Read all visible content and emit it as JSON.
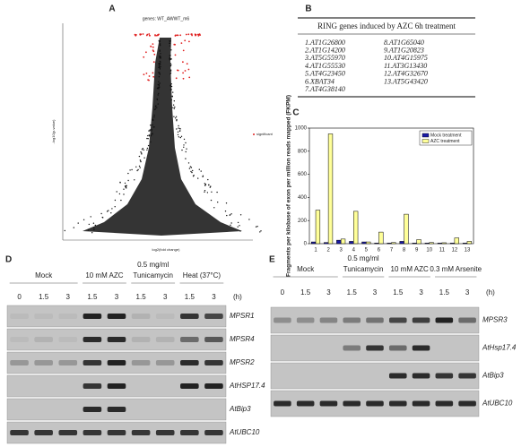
{
  "panel_a": {
    "label": "A",
    "title": "genes: WT_AWWT_m6",
    "x_label": "log2(fold change)",
    "y_label": "-log10(p-value)",
    "legend": "significant"
  },
  "panel_b": {
    "label": "B",
    "title": "RING genes induced by AZC 6h treatment",
    "genes": [
      "1.AT1G26800",
      "2.AT1G14200",
      "3.AT5G55970",
      "4.AT1G55530",
      "5.AT4G23450",
      "6.XBAT34",
      "7.AT4G38140",
      "8.AT1G65040",
      "9.AT1G20823",
      "10.AT4G15975",
      "11.AT3G13430",
      "12.AT4G32670",
      "13.AT5G43420"
    ]
  },
  "chart_data": {
    "type": "bar",
    "label": "C",
    "y_label": "Fragments per kilobase of exon per million reads mapped (FKPM)",
    "categories": [
      "1",
      "2",
      "3",
      "4",
      "5",
      "6",
      "7",
      "8",
      "9",
      "10",
      "11",
      "12",
      "13"
    ],
    "series": [
      {
        "name": "Mock treatment",
        "color": "#1a1aa6",
        "values": [
          15,
          10,
          30,
          20,
          15,
          5,
          5,
          20,
          5,
          5,
          5,
          5,
          5
        ]
      },
      {
        "name": "AZC treatment",
        "color": "#ffff99",
        "values": [
          290,
          950,
          40,
          280,
          15,
          100,
          10,
          255,
          35,
          10,
          8,
          50,
          20
        ]
      }
    ],
    "ylim": [
      0,
      1000
    ],
    "yticks": [
      0,
      200,
      400,
      600,
      800,
      1000
    ],
    "legend": "upper right"
  },
  "panel_d": {
    "label": "D",
    "groups": [
      [
        "Mock"
      ],
      [
        "10 mM AZC"
      ],
      [
        "0.5 mg/ml",
        "Tunicamycin"
      ],
      [
        "Heat (37°C)"
      ]
    ],
    "times": [
      "0",
      "1.5",
      "3",
      "1.5",
      "3",
      "1.5",
      "3",
      "1.5",
      "3"
    ],
    "unit": "(h)",
    "genes": [
      "MPSR1",
      "MPSR4",
      "MPSR2",
      "AtHSP17.4",
      "AtBip3",
      "AtUBC10"
    ]
  },
  "panel_e": {
    "label": "E",
    "groups": [
      [
        "Mock"
      ],
      [
        "0.5 mg/ml",
        "Tunicamycin"
      ],
      [
        "10 mM AZC"
      ],
      [
        "0.3 mM Arsenite"
      ]
    ],
    "times": [
      "0",
      "1.5",
      "3",
      "1.5",
      "3",
      "1.5",
      "3",
      "1.5",
      "3"
    ],
    "unit": "(h)",
    "genes": [
      "MPSR3",
      "AtHsp17.4",
      "AtBip3",
      "AtUBC10"
    ]
  }
}
